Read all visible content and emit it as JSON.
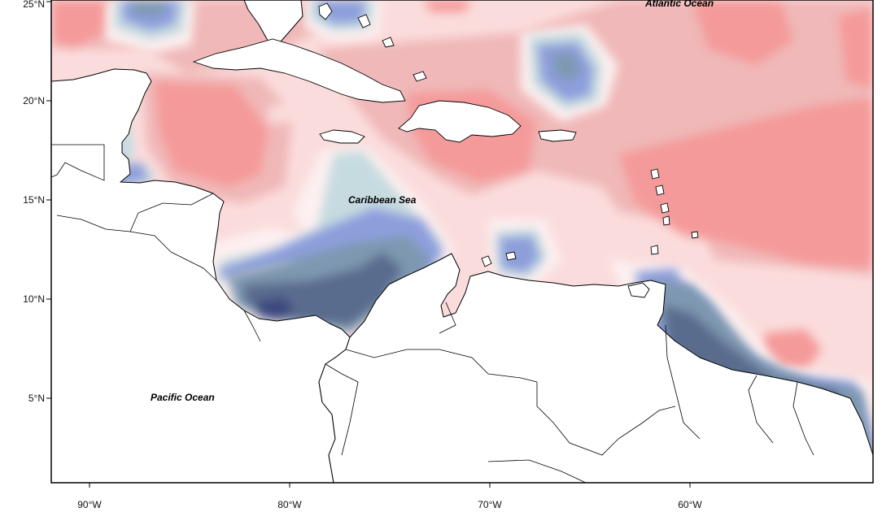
{
  "map": {
    "colors": {
      "strong_warm": "#f59a9a",
      "warm": "#f0b8b8",
      "light_warm": "#fbdcdc",
      "neutral": "#fdf0f0",
      "light_cool": "#c6dbe0",
      "cool": "#8d9fdb",
      "slate": "#7e98b0",
      "dark_slate": "#5a6c8e",
      "deep": "#3e4a80",
      "land": "#ffffff",
      "frame": "#000000"
    },
    "x_axis": {
      "ticks": [
        {
          "value": -90,
          "label": "90°W"
        },
        {
          "value": -80,
          "label": "80°W"
        },
        {
          "value": -70,
          "label": "70°W"
        },
        {
          "value": -60,
          "label": "60°W"
        }
      ]
    },
    "y_axis": {
      "ticks": [
        {
          "value": 25,
          "label": "25°N"
        },
        {
          "value": 20,
          "label": "20°N"
        },
        {
          "value": 15,
          "label": "15°N"
        },
        {
          "value": 10,
          "label": "10°N"
        },
        {
          "value": 5,
          "label": "5°N"
        }
      ]
    },
    "labels": {
      "atlantic": "Atlantic Ocean",
      "caribbean": "Caribbean Sea",
      "pacific": "Pacific Ocean"
    }
  }
}
